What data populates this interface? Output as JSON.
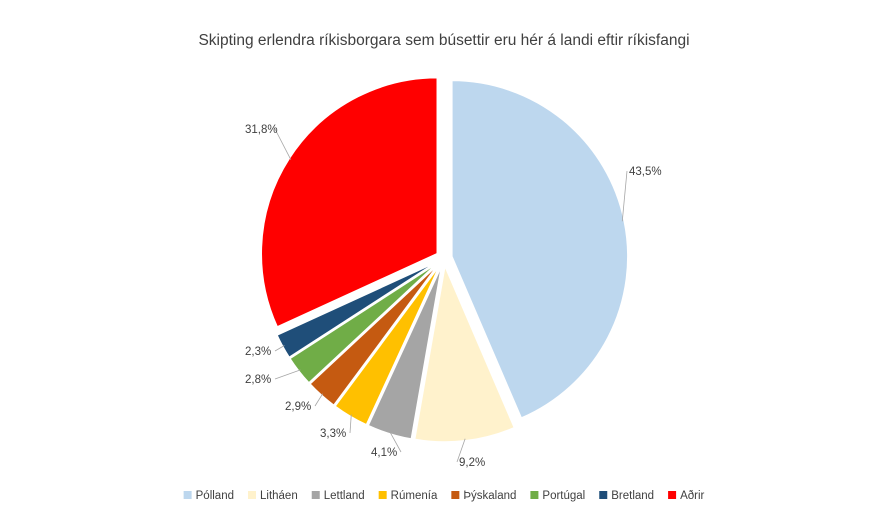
{
  "chart_data": {
    "type": "pie",
    "title": "Skipting erlendra ríkisborgara sem búsettir eru hér á landi eftir ríkisfangi",
    "categories": [
      "Pólland",
      "Litháen",
      "Lettland",
      "Rúmenía",
      "Þýskaland",
      "Portúgal",
      "Bretland",
      "Aðrir"
    ],
    "values": [
      43.5,
      9.2,
      4.1,
      3.3,
      2.9,
      2.8,
      2.3,
      31.8
    ],
    "value_labels": [
      "43,5%",
      "9,2%",
      "4,1%",
      "3,3%",
      "2,9%",
      "2,8%",
      "2,3%",
      "31,8%"
    ],
    "colors": [
      "#BDD7EE",
      "#FFF2CC",
      "#A5A5A5",
      "#FFC000",
      "#C55A11",
      "#70AD47",
      "#1F4E79",
      "#FF0000"
    ],
    "legend_position": "bottom",
    "exploded": true
  }
}
